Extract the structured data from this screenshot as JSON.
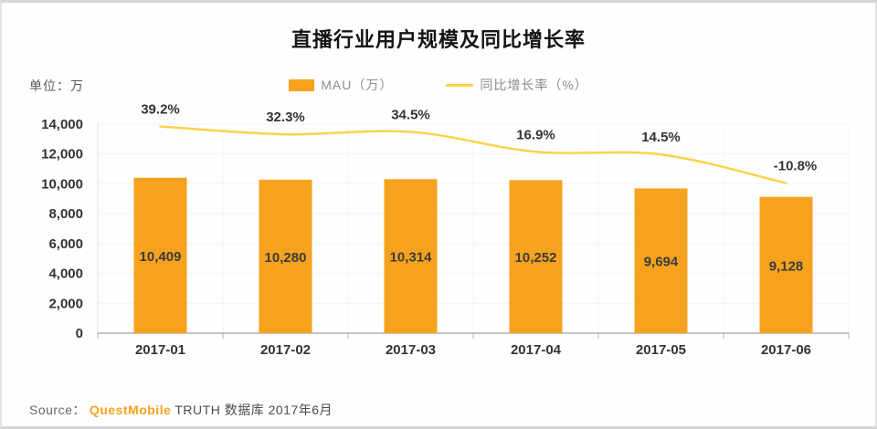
{
  "page": {
    "unit_label": "单位：万"
  },
  "legend": [
    {
      "label": "MAU（万）",
      "swatch": "bar-swatch",
      "color": "#F7A21E"
    },
    {
      "label": "同比增长率（%）",
      "swatch": "line-swatch",
      "color": "#F8D44B"
    }
  ],
  "source": {
    "prefix": "Source：",
    "brand": "QuestMobile",
    "suffix": "TRUTH 数据库 2017年6月"
  },
  "colors": {
    "bar": "#F7A21E",
    "line": "#F8D44B",
    "axis": "#b0b0b0",
    "y_axis": "#dddddd",
    "grid": "#f4f4f4",
    "text": "#333333",
    "brand": "#F7A21E"
  },
  "chart_data": {
    "type": "bar",
    "title": "直播行业用户规模及同比增长率",
    "xlabel": "",
    "ylabel": "单位：万",
    "categories": [
      "2017-01",
      "2017-02",
      "2017-03",
      "2017-04",
      "2017-05",
      "2017-06"
    ],
    "series": [
      {
        "name": "MAU（万）",
        "type": "bar",
        "values": [
          10409,
          10280,
          10314,
          10252,
          9694,
          9128
        ],
        "labels": [
          "10,409",
          "10,280",
          "10,314",
          "10,252",
          "9,694",
          "9,128"
        ],
        "color": "#F7A21E"
      },
      {
        "name": "同比增长率（%）",
        "type": "line",
        "values": [
          39.2,
          32.3,
          34.5,
          16.9,
          14.5,
          -10.8
        ],
        "labels": [
          "39.2%",
          "32.3%",
          "34.5%",
          "16.9%",
          "14.5%",
          "-10.8%"
        ],
        "color": "#F8D44B"
      }
    ],
    "ylim": [
      0,
      14000
    ],
    "yticks": [
      0,
      2000,
      4000,
      6000,
      8000,
      10000,
      12000,
      14000
    ],
    "ytick_labels": [
      "0",
      "2,000",
      "4,000",
      "6,000",
      "8,000",
      "10,000",
      "12,000",
      "14,000"
    ],
    "grid": "faint-vertical-and-horizontal",
    "legend_position": "top-center",
    "value_labels": "inside-bar-center",
    "line_labels": "above-line"
  }
}
